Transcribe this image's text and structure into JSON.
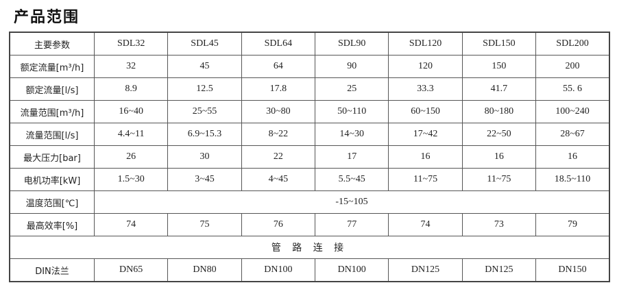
{
  "title": "产品范围",
  "header": {
    "label": "主要参数",
    "models": [
      "SDL32",
      "SDL45",
      "SDL64",
      "SDL90",
      "SDL120",
      "SDL150",
      "SDL200"
    ]
  },
  "rows": [
    {
      "label": "额定流量[m³/h]",
      "values": [
        "32",
        "45",
        "64",
        "90",
        "120",
        "150",
        "200"
      ]
    },
    {
      "label": "额定流量[l/s]",
      "values": [
        "8.9",
        "12.5",
        "17.8",
        "25",
        "33.3",
        "41.7",
        "55. 6"
      ]
    },
    {
      "label": "流量范围[m³/h]",
      "values": [
        "16~40",
        "25~55",
        "30~80",
        "50~110",
        "60~150",
        "80~180",
        "100~240"
      ]
    },
    {
      "label": "流量范围[l/s]",
      "values": [
        "4.4~11",
        "6.9~15.3",
        "8~22",
        "14~30",
        "17~42",
        "22~50",
        "28~67"
      ]
    },
    {
      "label": "最大压力[bar]",
      "values": [
        "26",
        "30",
        "22",
        "17",
        "16",
        "16",
        "16"
      ]
    },
    {
      "label": "电机功率[kW]",
      "values": [
        "1.5~30",
        "3~45",
        "4~45",
        "5.5~45",
        "11~75",
        "11~75",
        "18.5~110"
      ]
    }
  ],
  "temperature": {
    "label": "温度范围[℃]",
    "value": "-15~105"
  },
  "efficiency": {
    "label": "最高效率[%]",
    "values": [
      "74",
      "75",
      "76",
      "77",
      "74",
      "73",
      "79"
    ]
  },
  "section": "管 路 连 接",
  "flange": {
    "label": "DIN法兰",
    "values": [
      "DN65",
      "DN80",
      "DN100",
      "DN100",
      "DN125",
      "DN125",
      "DN150"
    ]
  }
}
